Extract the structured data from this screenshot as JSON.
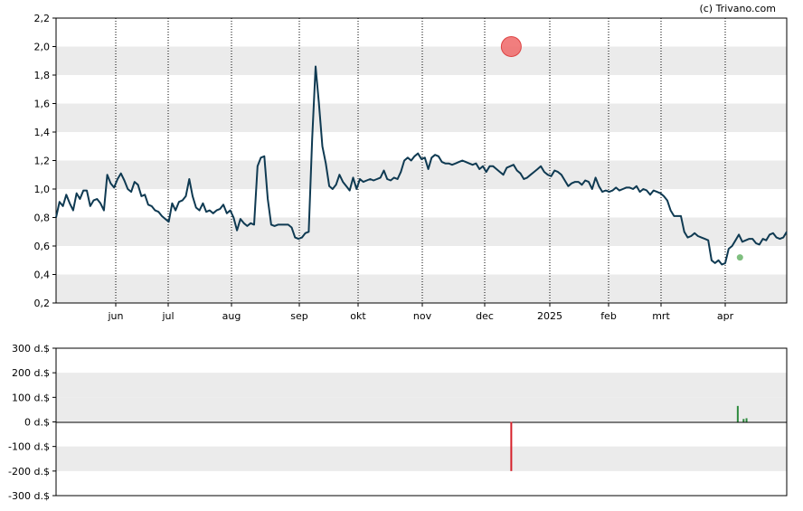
{
  "credit": "(c) Trivano.com",
  "colors": {
    "price_line": "#0f3a52",
    "band": "#ebebeb",
    "buy": "#2e8b3e",
    "sell": "#d6202a",
    "marker": "#f07070"
  },
  "chart_data": [
    {
      "type": "line",
      "x_tick_labels": [
        "jun",
        "jul",
        "aug",
        "sep",
        "okt",
        "nov",
        "dec",
        "2025",
        "feb",
        "mrt",
        "apr"
      ],
      "ylim": [
        0.2,
        2.2
      ],
      "y_ticks": [
        "0,2",
        "0,4",
        "0,6",
        "0,8",
        "1,0",
        "1,2",
        "1,4",
        "1,6",
        "1,8",
        "2,0",
        "2,2"
      ],
      "grid": true,
      "series": [
        {
          "values": [
            0.8,
            0.91,
            0.88,
            0.96,
            0.9,
            0.85,
            0.97,
            0.93,
            0.99,
            0.99,
            0.88,
            0.92,
            0.93,
            0.9,
            0.85,
            1.1,
            1.04,
            1.01,
            1.07,
            1.11,
            1.06,
            1.0,
            0.98,
            1.05,
            1.03,
            0.95,
            0.96,
            0.89,
            0.88,
            0.85,
            0.84,
            0.81,
            0.79,
            0.77,
            0.9,
            0.85,
            0.91,
            0.92,
            0.95,
            1.07,
            0.95,
            0.87,
            0.85,
            0.9,
            0.84,
            0.85,
            0.83,
            0.85,
            0.86,
            0.89,
            0.83,
            0.85,
            0.8,
            0.71,
            0.79,
            0.76,
            0.74,
            0.76,
            0.75,
            1.16,
            1.22,
            1.23,
            0.93,
            0.75,
            0.74,
            0.75,
            0.75,
            0.75,
            0.75,
            0.73,
            0.66,
            0.65,
            0.66,
            0.69,
            0.7,
            1.35,
            1.86,
            1.6,
            1.3,
            1.18,
            1.02,
            1.0,
            1.03,
            1.1,
            1.05,
            1.02,
            0.99,
            1.08,
            1.0,
            1.07,
            1.05,
            1.06,
            1.07,
            1.06,
            1.07,
            1.08,
            1.13,
            1.07,
            1.06,
            1.08,
            1.07,
            1.12,
            1.2,
            1.22,
            1.2,
            1.23,
            1.25,
            1.21,
            1.22,
            1.14,
            1.22,
            1.24,
            1.23,
            1.19,
            1.18,
            1.18,
            1.17,
            1.18,
            1.19,
            1.2,
            1.19,
            1.18,
            1.17,
            1.18,
            1.14,
            1.16,
            1.12,
            1.16,
            1.16,
            1.14,
            1.12,
            1.1,
            1.15,
            1.16,
            1.17,
            1.13,
            1.11,
            1.07,
            1.08,
            1.1,
            1.12,
            1.14,
            1.16,
            1.12,
            1.1,
            1.09,
            1.13,
            1.12,
            1.1,
            1.06,
            1.02,
            1.04,
            1.05,
            1.05,
            1.03,
            1.06,
            1.05,
            1.0,
            1.08,
            1.02,
            0.98,
            0.99,
            0.98,
            0.99,
            1.01,
            0.99,
            1.0,
            1.01,
            1.01,
            1.0,
            1.02,
            0.98,
            1.0,
            0.99,
            0.96,
            0.99,
            0.98,
            0.97,
            0.95,
            0.92,
            0.85,
            0.81,
            0.81,
            0.81,
            0.7,
            0.66,
            0.67,
            0.69,
            0.67,
            0.66,
            0.65,
            0.64,
            0.5,
            0.48,
            0.5,
            0.47,
            0.48,
            0.58,
            0.6,
            0.64,
            0.68,
            0.63,
            0.64,
            0.65,
            0.65,
            0.62,
            0.61,
            0.65,
            0.64,
            0.68,
            0.69,
            0.66,
            0.65,
            0.66,
            0.7
          ],
          "x_start": 0,
          "x_end": 1
        }
      ],
      "markers": [
        {
          "kind": "circle",
          "color": "#f07070",
          "x_frac": 0.623,
          "y": 2.0
        },
        {
          "kind": "small-dot",
          "color": "#7fbf7f",
          "x_frac": 0.936,
          "y": 0.52
        }
      ]
    },
    {
      "type": "bar",
      "ylim": [
        -300,
        300
      ],
      "y_ticks": [
        "300 d.$",
        "200 d.$",
        "100 d.$",
        "0 d.$",
        "-100 d.$",
        "-200 d.$",
        "-300 d.$"
      ],
      "grid": true,
      "bars": [
        {
          "x_frac": 0.623,
          "value": -200,
          "color": "#d6202a"
        },
        {
          "x_frac": 0.933,
          "value": 65,
          "color": "#2e8b3e"
        },
        {
          "x_frac": 0.941,
          "value": 12,
          "color": "#2e8b3e"
        },
        {
          "x_frac": 0.945,
          "value": 15,
          "color": "#2e8b3e"
        }
      ]
    }
  ]
}
